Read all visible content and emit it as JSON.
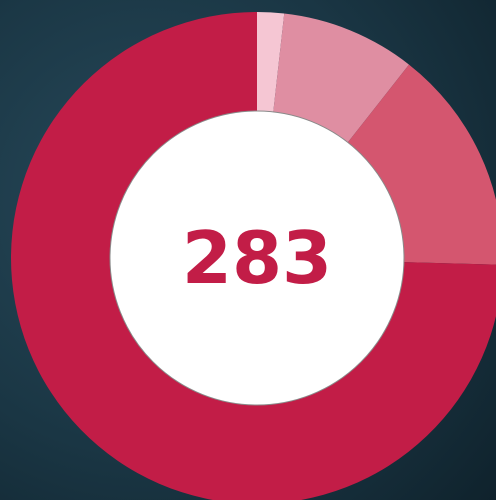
{
  "chart_data": {
    "type": "donut",
    "total": 283,
    "categories": [
      null,
      null,
      null,
      null
    ],
    "values": [
      5,
      25,
      42,
      211
    ],
    "colors": [
      "#f5c6d3",
      "#df8ea2",
      "#d4566f",
      "#c21d47"
    ]
  }
}
